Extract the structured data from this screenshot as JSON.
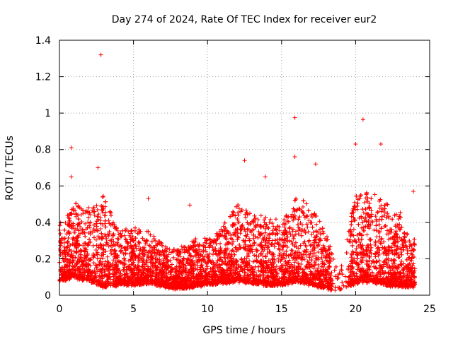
{
  "chart_data": {
    "type": "scatter",
    "title": "Day 274 of 2024, Rate Of TEC Index for receiver eur2",
    "xlabel": "GPS time / hours",
    "ylabel": "ROTI / TECUs",
    "xlim": [
      0,
      25
    ],
    "ylim": [
      0,
      1.4
    ],
    "x_ticks": [
      0,
      5,
      10,
      15,
      20,
      25
    ],
    "x_tick_labels": [
      "0",
      "5",
      "10",
      "15",
      "20",
      "25"
    ],
    "y_ticks": [
      0,
      0.2,
      0.4,
      0.6,
      0.8,
      1.0,
      1.2,
      1.4
    ],
    "y_tick_labels": [
      "0",
      "0.2",
      "0.4",
      "0.6",
      "0.8",
      "1",
      "1.2",
      "1.4"
    ],
    "grid": true,
    "marker": "+",
    "color": "#ff0000",
    "series": [
      {
        "name": "ROTI",
        "notable_points": [
          {
            "x": 2.8,
            "y": 1.32
          },
          {
            "x": 15.9,
            "y": 0.975
          },
          {
            "x": 20.5,
            "y": 0.965
          },
          {
            "x": 0.8,
            "y": 0.81
          },
          {
            "x": 20.0,
            "y": 0.83
          },
          {
            "x": 21.7,
            "y": 0.83
          },
          {
            "x": 2.6,
            "y": 0.7
          },
          {
            "x": 12.5,
            "y": 0.74
          },
          {
            "x": 17.3,
            "y": 0.72
          },
          {
            "x": 15.9,
            "y": 0.76
          },
          {
            "x": 13.9,
            "y": 0.65
          },
          {
            "x": 0.8,
            "y": 0.65
          },
          {
            "x": 6.0,
            "y": 0.53
          },
          {
            "x": 8.8,
            "y": 0.495
          },
          {
            "x": 23.9,
            "y": 0.57
          }
        ],
        "profile": {
          "x_hours": [
            0,
            1,
            2,
            3,
            4,
            5,
            6,
            7,
            8,
            9,
            10,
            11,
            12,
            13,
            14,
            15,
            16,
            17,
            18,
            19,
            20,
            21,
            22,
            23,
            24
          ],
          "typical_max": [
            0.4,
            0.5,
            0.48,
            0.55,
            0.35,
            0.38,
            0.35,
            0.28,
            0.25,
            0.3,
            0.32,
            0.38,
            0.5,
            0.45,
            0.45,
            0.4,
            0.55,
            0.5,
            0.35,
            0.14,
            0.55,
            0.58,
            0.52,
            0.45,
            0.3
          ],
          "baseline": [
            0.08,
            0.1,
            0.08,
            0.05,
            0.06,
            0.06,
            0.07,
            0.05,
            0.04,
            0.05,
            0.06,
            0.07,
            0.08,
            0.07,
            0.06,
            0.06,
            0.08,
            0.06,
            0.04,
            0.03,
            0.07,
            0.08,
            0.06,
            0.05,
            0.05
          ]
        }
      }
    ]
  }
}
